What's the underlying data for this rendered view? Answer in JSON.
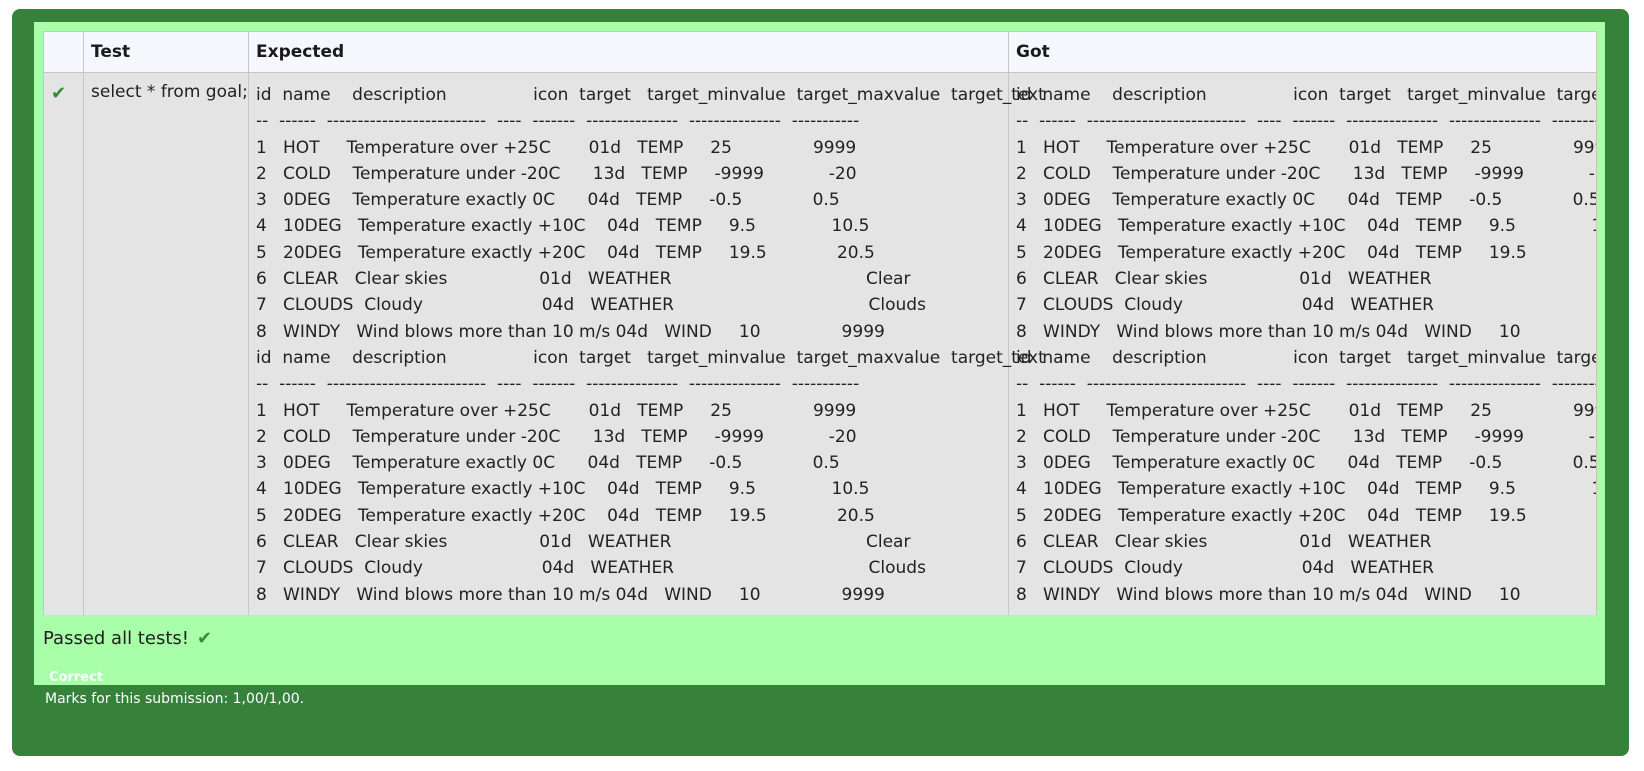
{
  "result_table": {
    "headers": [
      "",
      "Test",
      "Expected",
      "Got"
    ],
    "rows": [
      {
        "status_icon": "check-icon",
        "test": "select * from goal;",
        "expected": "id  name    description                icon  target   target_minvalue  target_maxvalue  target_text\n--  ------  --------------------------  ----  -------  ---------------  ---------------  -----------\n1   HOT     Temperature over +25C       01d   TEMP     25               9999\n2   COLD    Temperature under -20C      13d   TEMP     -9999            -20\n3   0DEG    Temperature exactly 0C      04d   TEMP     -0.5             0.5\n4   10DEG   Temperature exactly +10C    04d   TEMP     9.5              10.5\n5   20DEG   Temperature exactly +20C    04d   TEMP     19.5             20.5\n6   CLEAR   Clear skies                 01d   WEATHER                                    Clear\n7   CLOUDS  Cloudy                      04d   WEATHER                                    Clouds\n8   WINDY   Wind blows more than 10 m/s 04d   WIND     10               9999\nid  name    description                icon  target   target_minvalue  target_maxvalue  target_text\n--  ------  --------------------------  ----  -------  ---------------  ---------------  -----------\n1   HOT     Temperature over +25C       01d   TEMP     25               9999\n2   COLD    Temperature under -20C      13d   TEMP     -9999            -20\n3   0DEG    Temperature exactly 0C      04d   TEMP     -0.5             0.5\n4   10DEG   Temperature exactly +10C    04d   TEMP     9.5              10.5\n5   20DEG   Temperature exactly +20C    04d   TEMP     19.5             20.5\n6   CLEAR   Clear skies                 01d   WEATHER                                    Clear\n7   CLOUDS  Cloudy                      04d   WEATHER                                    Clouds\n8   WINDY   Wind blows more than 10 m/s 04d   WIND     10               9999",
        "got": "id  name    description                icon  target   target_minvalue  target_maxvalue  target_text\n--  ------  --------------------------  ----  -------  ---------------  ---------------  -----------\n1   HOT     Temperature over +25C       01d   TEMP     25               9999\n2   COLD    Temperature under -20C      13d   TEMP     -9999            -20\n3   0DEG    Temperature exactly 0C      04d   TEMP     -0.5             0.5\n4   10DEG   Temperature exactly +10C    04d   TEMP     9.5              10.5\n5   20DEG   Temperature exactly +20C    04d   TEMP     19.5             20.5\n6   CLEAR   Clear skies                 01d   WEATHER                                    Clear\n7   CLOUDS  Cloudy                      04d   WEATHER                                    Clouds\n8   WINDY   Wind blows more than 10 m/s 04d   WIND     10               9999\nid  name    description                icon  target   target_minvalue  target_maxvalue  target_text\n--  ------  --------------------------  ----  -------  ---------------  ---------------  -----------\n1   HOT     Temperature over +25C       01d   TEMP     25               9999\n2   COLD    Temperature under -20C      13d   TEMP     -9999            -20\n3   0DEG    Temperature exactly 0C      04d   TEMP     -0.5             0.5\n4   10DEG   Temperature exactly +10C    04d   TEMP     9.5              10.5\n5   20DEG   Temperature exactly +20C    04d   TEMP     19.5             20.5\n6   CLEAR   Clear skies                 01d   WEATHER                                    Clear\n7   CLOUDS  Cloudy                      04d   WEATHER                                    Clouds\n8   WINDY   Wind blows more than 10 m/s 04d   WIND     10               9999"
      }
    ]
  },
  "summary": {
    "passed_text": "Passed all tests!",
    "passed_icon": "check-icon"
  },
  "grade": {
    "status": "Correct",
    "marks": "Marks for this submission: 1,00/1,00."
  },
  "colors": {
    "outer_background": "#36823a",
    "pass_panel": "#a9fea9",
    "cell_background": "#e4e4e4",
    "header_background": "#f5f7fd",
    "check_green": "#3a8a3c"
  }
}
